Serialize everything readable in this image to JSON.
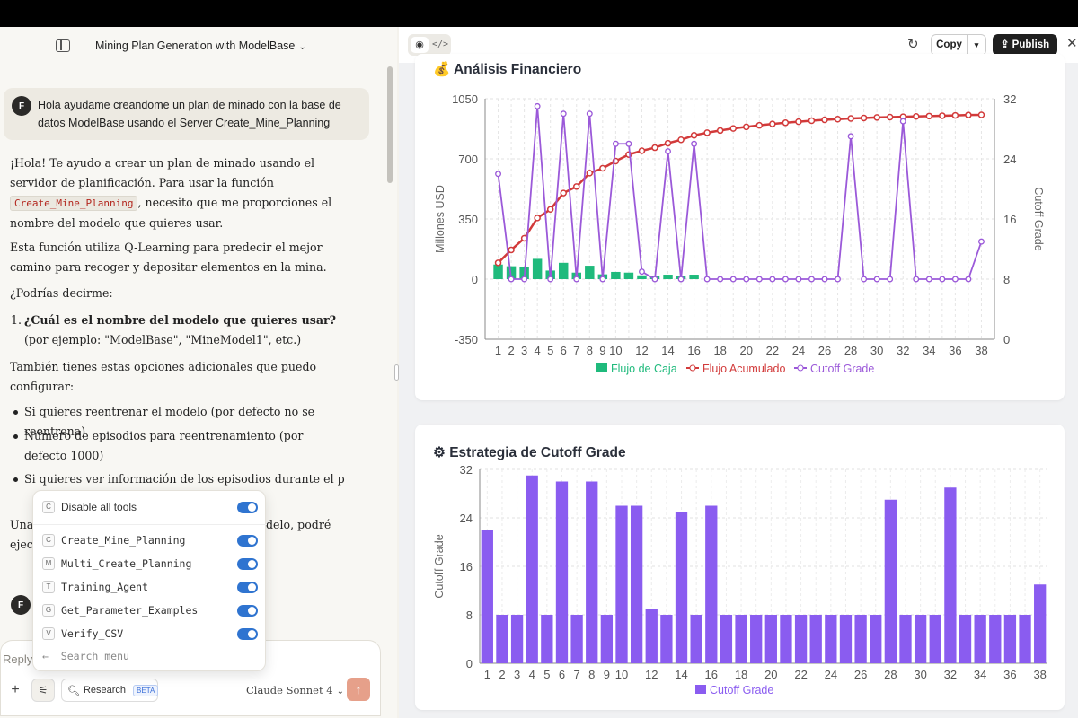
{
  "chat": {
    "title": "Mining Plan Generation with ModelBase",
    "user_initial": "F",
    "user_message": "Hola ayudame creandome un plan de minado con la base de datos ModelBase usando el Server Create_Mine_Planning",
    "reply": {
      "p1_before": "¡Hola! Te ayudo a crear un plan de minado usando el servidor de planificación. Para usar la función ",
      "p1_code": "Create_Mine_Planning",
      "p1_after": ", necesito que me proporciones el nombre del modelo que quieres usar.",
      "p2": "Esta función utiliza Q-Learning para predecir el mejor camino para recoger y depositar elementos en la mina.",
      "p3": "¿Podrías decirme:",
      "ol_num": "1.",
      "ol_bold": "¿Cuál es el nombre del modelo que quieres usar?",
      "ol_rest": " (por ejemplo: \"ModelBase\", \"MineModel1\", etc.)",
      "p4": "También tienes estas opciones adicionales que puedo configurar:",
      "bullets": [
        "Si quieres reentrenar el modelo (por defecto no se reentrena)",
        "Número de episodios para reentrenamiento (por defecto 1000)",
        "Si quieres ver información de los episodios durante el p"
      ],
      "p5_left": "Una",
      "p5_right": "delo, podré",
      "p6_left": "ejec"
    }
  },
  "tools_menu": {
    "disable_all": {
      "key": "C",
      "label": "Disable all tools"
    },
    "items": [
      {
        "key": "C",
        "label": "Create_Mine_Planning"
      },
      {
        "key": "M",
        "label": "Multi_Create_Planning"
      },
      {
        "key": "T",
        "label": "Training_Agent"
      },
      {
        "key": "G",
        "label": "Get_Parameter_Examples"
      },
      {
        "key": "V",
        "label": "Verify_CSV"
      }
    ],
    "search_placeholder": "Search menu",
    "toggle_color": "#2f74d0"
  },
  "composer": {
    "placeholder": "Reply",
    "research_label": "Research",
    "beta_label": "BETA",
    "model_label": "Claude Sonnet 4",
    "plus": "+",
    "send_icon": "↑"
  },
  "artifact": {
    "copy_label": "Copy",
    "publish_label": "Publish",
    "publish_icon": "⇪",
    "card1_title": "Análisis Financiero",
    "card1_icon": "💰",
    "card2_title": "Estrategia de Cutoff Grade",
    "card2_icon": "⚙"
  },
  "chart_data": [
    {
      "type": "bar+line",
      "title": "Análisis Financiero",
      "x": [
        1,
        2,
        3,
        4,
        5,
        6,
        7,
        8,
        9,
        10,
        11,
        12,
        13,
        14,
        15,
        16,
        17,
        18,
        19,
        20,
        21,
        22,
        23,
        24,
        25,
        26,
        27,
        28,
        29,
        30,
        31,
        32,
        33,
        34,
        35,
        36,
        37,
        38
      ],
      "x_tick_labels": [
        "1",
        "2",
        "3",
        "4",
        "5",
        "6",
        "7",
        "8",
        "9",
        "10",
        "12",
        "14",
        "16",
        "18",
        "20",
        "22",
        "24",
        "26",
        "28",
        "30",
        "32",
        "34",
        "36",
        "38"
      ],
      "y_left": {
        "label": "Millones USD",
        "ticks": [
          -350,
          0,
          350,
          700,
          1050
        ],
        "lim": [
          -350,
          1050
        ]
      },
      "y_right": {
        "label": "Cutoff Grade",
        "ticks": [
          0,
          8,
          16,
          24,
          32
        ],
        "lim": [
          0,
          32
        ]
      },
      "series": [
        {
          "name": "Flujo de Caja",
          "type": "bar",
          "axis": "left",
          "color": "#1fba7c",
          "values": [
            85,
            75,
            68,
            118,
            50,
            95,
            38,
            78,
            28,
            42,
            38,
            22,
            18,
            26,
            20,
            26,
            0,
            0,
            0,
            0,
            0,
            0,
            0,
            0,
            0,
            0,
            0,
            0,
            0,
            0,
            0,
            0,
            0,
            0,
            0,
            0,
            0,
            0
          ]
        },
        {
          "name": "Flujo Acumulado",
          "type": "line",
          "axis": "left",
          "color": "#d23a3a",
          "values": [
            95,
            170,
            238,
            356,
            406,
            501,
            539,
            617,
            645,
            687,
            725,
            747,
            765,
            791,
            811,
            837,
            852,
            865,
            877,
            886,
            895,
            903,
            910,
            916,
            922,
            927,
            931,
            935,
            938,
            941,
            943,
            945,
            947,
            949,
            951,
            953,
            955,
            956
          ]
        },
        {
          "name": "Cutoff Grade",
          "type": "line",
          "axis": "right",
          "color": "#9b59d9",
          "values": [
            22,
            8,
            8,
            31,
            8,
            30,
            8,
            30,
            8,
            26,
            26,
            9,
            8,
            25,
            8,
            26,
            8,
            8,
            8,
            8,
            8,
            8,
            8,
            8,
            8,
            8,
            8,
            27,
            8,
            8,
            8,
            29,
            8,
            8,
            8,
            8,
            8,
            13
          ]
        }
      ],
      "legend": "bottom"
    },
    {
      "type": "bar",
      "title": "Estrategia de Cutoff Grade",
      "x": [
        1,
        2,
        3,
        4,
        5,
        6,
        7,
        8,
        9,
        10,
        11,
        12,
        13,
        14,
        15,
        16,
        17,
        18,
        19,
        20,
        21,
        22,
        23,
        24,
        25,
        26,
        27,
        28,
        29,
        30,
        31,
        32,
        33,
        34,
        35,
        36,
        37,
        38
      ],
      "x_tick_labels": [
        "1",
        "2",
        "3",
        "4",
        "5",
        "6",
        "7",
        "8",
        "9",
        "10",
        "12",
        "14",
        "16",
        "18",
        "20",
        "22",
        "24",
        "26",
        "28",
        "30",
        "32",
        "34",
        "36",
        "38"
      ],
      "y": {
        "label": "Cutoff Grade",
        "ticks": [
          0,
          8,
          16,
          24,
          32
        ],
        "lim": [
          0,
          32
        ]
      },
      "series": [
        {
          "name": "Cutoff Grade",
          "color": "#8a5cf0",
          "values": [
            22,
            8,
            8,
            31,
            8,
            30,
            8,
            30,
            8,
            26,
            26,
            9,
            8,
            25,
            8,
            26,
            8,
            8,
            8,
            8,
            8,
            8,
            8,
            8,
            8,
            8,
            8,
            27,
            8,
            8,
            8,
            29,
            8,
            8,
            8,
            8,
            8,
            13
          ]
        }
      ],
      "legend": "bottom"
    }
  ]
}
